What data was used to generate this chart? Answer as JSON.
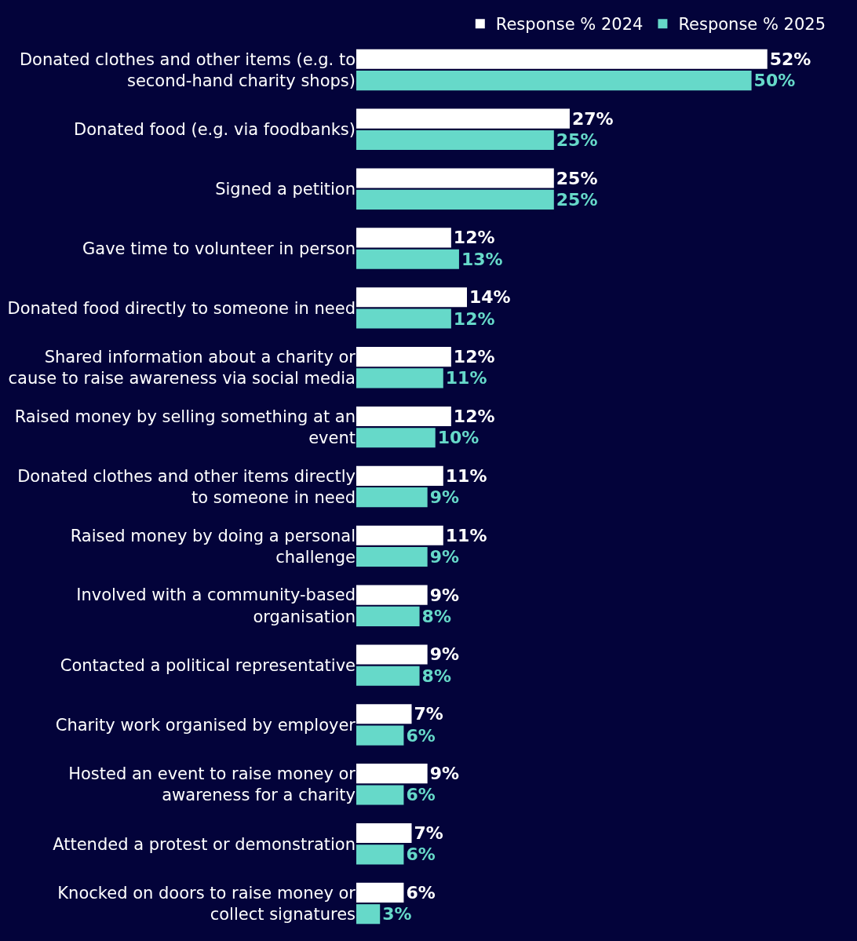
{
  "chart_data": {
    "type": "bar",
    "orientation": "horizontal",
    "legend": "top",
    "categories": [
      "Donated clothes and other items (e.g. to second-hand charity shops)",
      "Donated food (e.g. via foodbanks)",
      "Signed a petition",
      "Gave time to volunteer in person",
      "Donated food directly to someone in need",
      "Shared information about a charity or cause to raise awareness via social media",
      "Raised money by selling something at an event",
      "Donated clothes and other items directly to someone in need",
      "Raised money by doing a personal challenge",
      "Involved with a community-based organisation",
      "Contacted a political representative",
      "Charity work organised by employer",
      "Hosted an event to raise money or awareness for a charity",
      "Attended a protest or demonstration",
      "Knocked on doors to raise money or collect signatures"
    ],
    "series": [
      {
        "name": "Response % 2024",
        "color": "#ffffff",
        "values": [
          52,
          27,
          25,
          12,
          14,
          12,
          12,
          11,
          11,
          9,
          9,
          7,
          9,
          7,
          6
        ],
        "value_labels": [
          "52%",
          "27%",
          "25%",
          "12%",
          "14%",
          "12%",
          "12%",
          "11%",
          "11%",
          "9%",
          "9%",
          "7%",
          "9%",
          "7%",
          "6%"
        ]
      },
      {
        "name": "Response % 2025",
        "color": "#66d9c9",
        "values": [
          50,
          25,
          25,
          13,
          12,
          11,
          10,
          9,
          9,
          8,
          8,
          6,
          6,
          6,
          3
        ],
        "value_labels": [
          "50%",
          "25%",
          "25%",
          "13%",
          "12%",
          "11%",
          "10%",
          "9%",
          "9%",
          "8%",
          "8%",
          "6%",
          "6%",
          "6%",
          "3%"
        ]
      }
    ]
  }
}
